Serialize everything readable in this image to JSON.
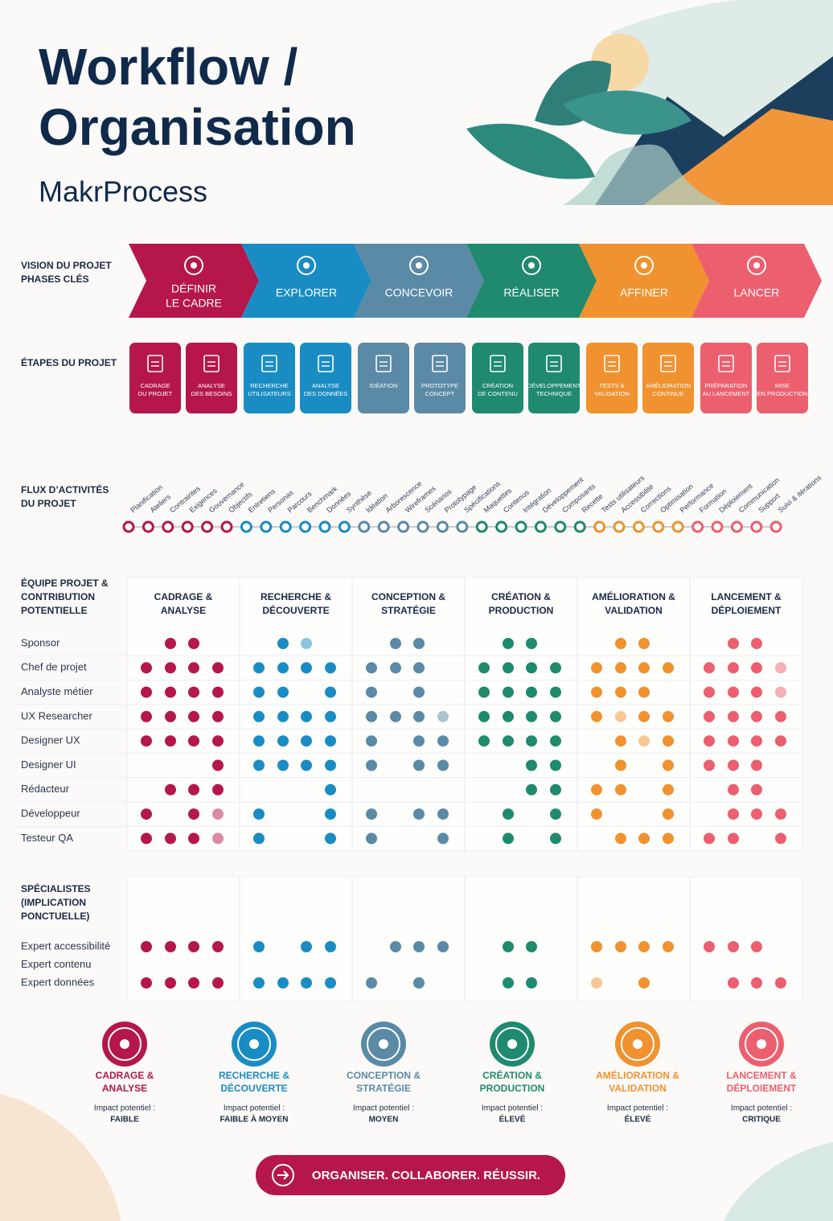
{
  "header": {
    "title": [
      "Workflow /",
      "Organisation"
    ],
    "subtitle": "MakrProcess"
  },
  "phases": {
    "label": [
      "VISION DU PROJET",
      "PHASES CLÉS"
    ],
    "items": [
      {
        "name": [
          "DÉFINIR",
          "LE CADRE"
        ],
        "color": "#b5174a"
      },
      {
        "name": [
          "EXPLORER"
        ],
        "color": "#1a8cc4"
      },
      {
        "name": [
          "CONCEVOIR"
        ],
        "color": "#5a8aa6"
      },
      {
        "name": [
          "RÉALISER"
        ],
        "color": "#1f8a6e"
      },
      {
        "name": [
          "AFFINER"
        ],
        "color": "#f0922f"
      },
      {
        "name": [
          "LANCER"
        ],
        "color": "#ec5f6e"
      }
    ]
  },
  "steps": {
    "label": [
      "ÉTAPES DU PROJET"
    ],
    "items": [
      {
        "name": [
          "CADRAGE",
          "DU PROJET"
        ]
      },
      {
        "name": [
          "ANALYSE",
          "DES BESOINS"
        ]
      },
      {
        "name": [
          "RECHERCHE",
          "UTILISATEURS"
        ]
      },
      {
        "name": [
          "ANALYSE",
          "DES DONNÉES"
        ]
      },
      {
        "name": [
          "IDÉATION"
        ]
      },
      {
        "name": [
          "PROTOTYPE",
          "CONCEPT"
        ]
      },
      {
        "name": [
          "CRÉATION",
          "DE CONTENU"
        ]
      },
      {
        "name": [
          "DÉVELOPPEMENT",
          "TECHNIQUE"
        ]
      },
      {
        "name": [
          "TESTS &",
          "VALIDATION"
        ]
      },
      {
        "name": [
          "AMÉLIORATION",
          "CONTINUE"
        ]
      },
      {
        "name": [
          "PRÉPARATION",
          "AU LANCEMENT"
        ]
      },
      {
        "name": [
          "MISE",
          "EN PRODUCTION"
        ]
      }
    ]
  },
  "flow": {
    "label": [
      "FLUX D’ACTIVITÉS",
      "DU PROJET"
    ],
    "groups": [
      {
        "activities": [
          "Planification",
          "Ateliers",
          "Contraintes",
          "Exigences",
          "Gouvernance",
          "Objectifs"
        ]
      },
      {
        "activities": [
          "Entretiens",
          "Personas",
          "Parcours",
          "Benchmark",
          "Données",
          "Synthèse"
        ]
      },
      {
        "activities": [
          "Idéation",
          "Arborescence",
          "Wireframes",
          "Scénarios",
          "Prototypage",
          "Spécifications"
        ]
      },
      {
        "activities": [
          "Maquettes",
          "Contenus",
          "Intégration",
          "Développement",
          "Composants",
          "Recette"
        ]
      },
      {
        "activities": [
          "Tests utilisateurs",
          "Accessibilité",
          "Corrections",
          "Optimisation",
          "Performance"
        ]
      },
      {
        "activities": [
          "Formation",
          "Déploiement",
          "Communication",
          "Support",
          "Suivi & itérations"
        ]
      }
    ]
  },
  "team": {
    "label": [
      "ÉQUIPE PROJET &",
      "CONTRIBUTION",
      "POTENTIELLE"
    ],
    "columns": [
      [
        "CADRAGE &",
        "ANALYSE"
      ],
      [
        "RECHERCHE &",
        "DÉCOUVERTE"
      ],
      [
        "CONCEPTION &",
        "STRATÉGIE"
      ],
      [
        "CRÉATION &",
        "PRODUCTION"
      ],
      [
        "AMÉLIORATION &",
        "VALIDATION"
      ],
      [
        "LANCEMENT &",
        "DÉPLOIEMENT"
      ]
    ],
    "rows": [
      {
        "role": "Sponsor",
        "levels": [
          [
            0,
            2,
            2,
            0
          ],
          [
            0,
            2,
            1,
            0
          ],
          [
            0,
            2,
            2,
            0
          ],
          [
            0,
            2,
            2,
            0
          ],
          [
            0,
            2,
            2,
            0
          ],
          [
            0,
            2,
            2,
            0
          ]
        ]
      },
      {
        "role": "Chef de projet",
        "levels": [
          [
            2,
            2,
            2,
            2
          ],
          [
            2,
            2,
            2,
            2
          ],
          [
            2,
            2,
            2,
            0
          ],
          [
            2,
            2,
            2,
            2
          ],
          [
            2,
            2,
            2,
            2
          ],
          [
            2,
            2,
            2,
            1
          ]
        ]
      },
      {
        "role": "Analyste métier",
        "levels": [
          [
            2,
            2,
            2,
            2
          ],
          [
            2,
            2,
            0,
            2
          ],
          [
            2,
            0,
            2,
            0
          ],
          [
            2,
            2,
            2,
            2
          ],
          [
            2,
            2,
            2,
            0
          ],
          [
            2,
            2,
            2,
            1
          ]
        ]
      },
      {
        "role": "UX Researcher",
        "levels": [
          [
            2,
            2,
            2,
            2
          ],
          [
            2,
            2,
            2,
            2
          ],
          [
            2,
            2,
            2,
            1
          ],
          [
            2,
            2,
            2,
            2
          ],
          [
            2,
            1,
            2,
            2
          ],
          [
            2,
            2,
            2,
            2
          ]
        ]
      },
      {
        "role": "Designer UX",
        "levels": [
          [
            2,
            2,
            2,
            2
          ],
          [
            2,
            2,
            2,
            2
          ],
          [
            2,
            0,
            2,
            2
          ],
          [
            2,
            2,
            2,
            2
          ],
          [
            0,
            2,
            1,
            2
          ],
          [
            2,
            2,
            2,
            2
          ]
        ]
      },
      {
        "role": "Designer UI",
        "levels": [
          [
            0,
            0,
            0,
            2
          ],
          [
            2,
            2,
            2,
            2
          ],
          [
            2,
            0,
            2,
            2
          ],
          [
            0,
            0,
            2,
            2
          ],
          [
            0,
            2,
            0,
            2
          ],
          [
            2,
            2,
            2,
            0
          ]
        ]
      },
      {
        "role": "Rédacteur",
        "levels": [
          [
            0,
            2,
            2,
            2
          ],
          [
            0,
            0,
            0,
            2
          ],
          [
            0,
            0,
            0,
            0
          ],
          [
            0,
            0,
            2,
            2
          ],
          [
            2,
            2,
            0,
            2
          ],
          [
            0,
            2,
            2,
            0
          ]
        ]
      },
      {
        "role": "Développeur",
        "levels": [
          [
            2,
            0,
            2,
            1
          ],
          [
            2,
            0,
            0,
            2
          ],
          [
            2,
            0,
            2,
            2
          ],
          [
            0,
            2,
            0,
            2
          ],
          [
            2,
            0,
            0,
            2
          ],
          [
            0,
            2,
            2,
            2
          ]
        ]
      },
      {
        "role": "Testeur QA",
        "levels": [
          [
            2,
            2,
            2,
            1
          ],
          [
            2,
            0,
            0,
            2
          ],
          [
            2,
            0,
            0,
            2
          ],
          [
            0,
            2,
            0,
            2
          ],
          [
            0,
            2,
            2,
            2
          ],
          [
            2,
            2,
            0,
            2
          ]
        ]
      }
    ]
  },
  "specialists": {
    "label": [
      "SPÉCIALISTES",
      "(IMPLICATION",
      "PONCTUELLE)"
    ],
    "rows": [
      {
        "role": "Expert accessibilité",
        "levels": [
          [
            2,
            2,
            2,
            2
          ],
          [
            2,
            0,
            2,
            2
          ],
          [
            0,
            2,
            2,
            2
          ],
          [
            0,
            2,
            2,
            0
          ],
          [
            2,
            2,
            2,
            2
          ],
          [
            2,
            2,
            2,
            0
          ]
        ]
      },
      {
        "role": "Expert contenu",
        "levels": [
          [
            0,
            0,
            0,
            0
          ],
          [
            0,
            0,
            0,
            0
          ],
          [
            0,
            0,
            0,
            0
          ],
          [
            0,
            0,
            0,
            0
          ],
          [
            0,
            0,
            0,
            0
          ],
          [
            0,
            0,
            0,
            0
          ]
        ]
      },
      {
        "role": "Expert données",
        "levels": [
          [
            2,
            2,
            2,
            2
          ],
          [
            2,
            2,
            2,
            2
          ],
          [
            2,
            0,
            2,
            0
          ],
          [
            0,
            2,
            2,
            0
          ],
          [
            1,
            0,
            2,
            0
          ],
          [
            0,
            2,
            2,
            2
          ]
        ]
      }
    ]
  },
  "impact": {
    "items": [
      {
        "name": [
          "CADRAGE &",
          "ANALYSE"
        ],
        "caption": "Impact potentiel :",
        "level": "FAIBLE"
      },
      {
        "name": [
          "RECHERCHE &",
          "DÉCOUVERTE"
        ],
        "caption": "Impact potentiel :",
        "level": "FAIBLE À MOYEN"
      },
      {
        "name": [
          "CONCEPTION &",
          "STRATÉGIE"
        ],
        "caption": "Impact potentiel :",
        "level": "MOYEN"
      },
      {
        "name": [
          "CRÉATION &",
          "PRODUCTION"
        ],
        "caption": "Impact potentiel :",
        "level": "ÉLEVÉ"
      },
      {
        "name": [
          "AMÉLIORATION &",
          "VALIDATION"
        ],
        "caption": "Impact potentiel :",
        "level": "ÉLEVÉ"
      },
      {
        "name": [
          "LANCEMENT &",
          "DÉPLOIEMENT"
        ],
        "caption": "Impact potentiel :",
        "level": "CRITIQUE"
      }
    ]
  },
  "cta": "ORGANISER. COLLABORER. RÉUSSIR."
}
